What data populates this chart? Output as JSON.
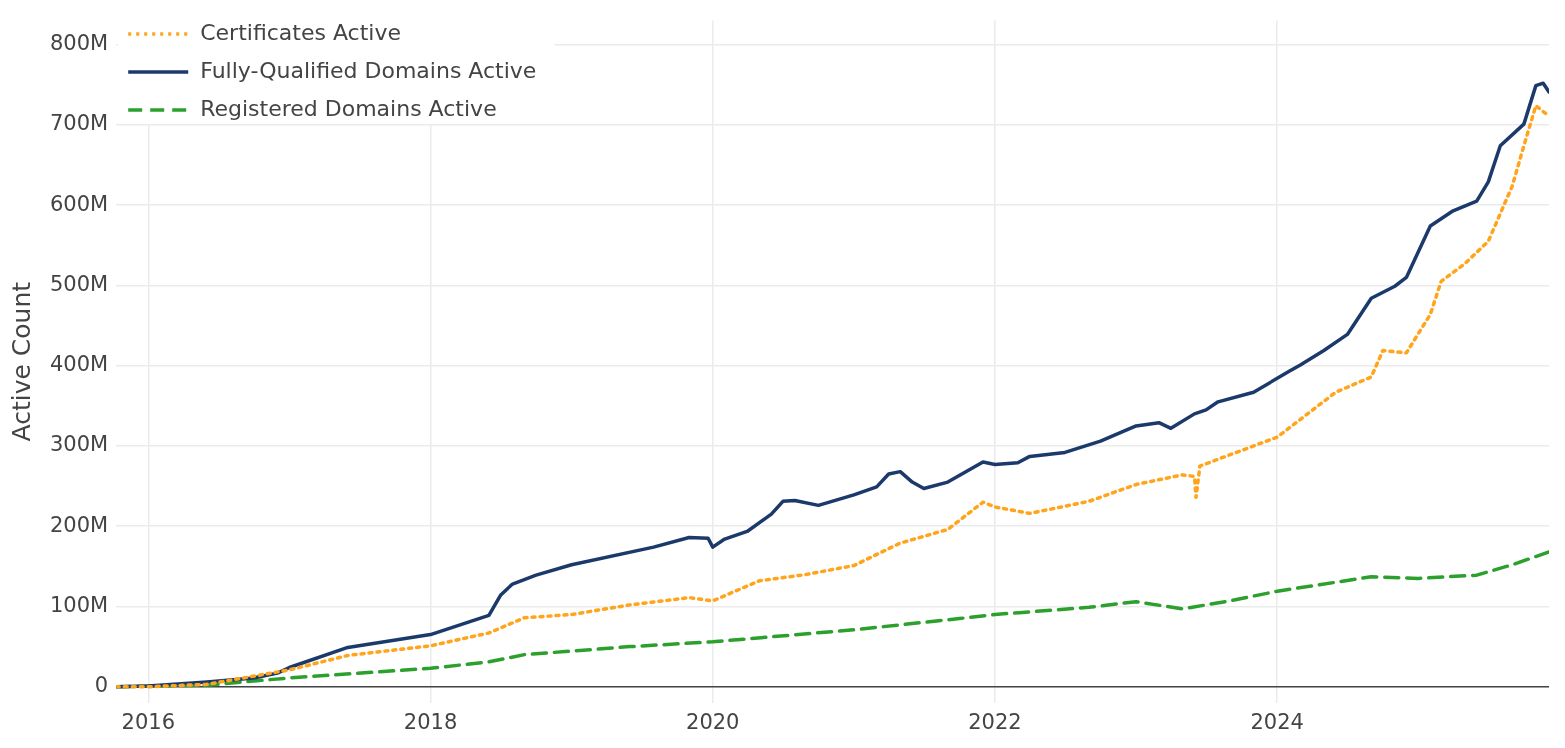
{
  "chart_data": {
    "type": "line",
    "ylabel": "Active Count",
    "xlim": [
      "2015-10-10",
      "2025-12-05"
    ],
    "ylim": [
      -20,
      830
    ],
    "xticks": [
      "2016",
      "2018",
      "2020",
      "2022",
      "2024"
    ],
    "yticks": [
      {
        "value": 0,
        "label": "0"
      },
      {
        "value": 100,
        "label": "100M"
      },
      {
        "value": 200,
        "label": "200M"
      },
      {
        "value": 300,
        "label": "300M"
      },
      {
        "value": 400,
        "label": "400M"
      },
      {
        "value": 500,
        "label": "500M"
      },
      {
        "value": 600,
        "label": "600M"
      },
      {
        "value": 700,
        "label": "700M"
      },
      {
        "value": 800,
        "label": "800M"
      }
    ],
    "grid": true,
    "legend": "top left",
    "marker": "none",
    "series": [
      {
        "name": "Certificates Active",
        "color": "#ffa41b",
        "line_style": "dotted",
        "x": [
          "2015-10-10",
          "2016-01",
          "2016-06",
          "2017-01",
          "2017-06",
          "2018-01",
          "2018-06",
          "2018-09",
          "2019-01",
          "2019-06",
          "2019-11",
          "2020-01",
          "2020-05",
          "2020-09",
          "2021-01",
          "2021-05",
          "2021-09",
          "2021-12",
          "2022-01",
          "2022-04",
          "2022-09",
          "2023-01",
          "2023-05",
          "2023-06-01",
          "2023-06-05",
          "2023-06-15",
          "2024-01",
          "2024-06",
          "2024-09",
          "2024-10",
          "2024-12",
          "2025-02",
          "2025-03",
          "2025-05",
          "2025-07",
          "2025-09",
          "2025-10",
          "2025-11",
          "2025-12-05"
        ],
        "values": [
          0,
          0,
          3,
          21,
          39,
          51,
          67,
          86,
          90,
          102,
          111,
          107,
          132,
          140,
          151,
          179,
          196,
          230,
          224,
          216,
          231,
          252,
          264,
          262,
          236,
          275,
          311,
          367,
          386,
          419,
          416,
          464,
          505,
          527,
          555,
          624,
          674,
          724,
          711
        ]
      },
      {
        "name": "Fully-Qualified Domains Active",
        "color": "#1b3a6b",
        "line_style": "solid",
        "x": [
          "2015-10-10",
          "2016-01",
          "2016-06",
          "2016-10",
          "2016-12",
          "2017-01",
          "2017-06",
          "2018-01",
          "2018-06",
          "2018-07",
          "2018-08",
          "2018-10",
          "2019-01",
          "2019-08",
          "2019-11",
          "2019-12-20",
          "2020-01",
          "2020-02",
          "2020-04",
          "2020-06",
          "2020-07",
          "2020-08",
          "2020-10",
          "2021-01",
          "2021-03",
          "2021-04",
          "2021-05",
          "2021-06",
          "2021-07",
          "2021-09",
          "2021-12",
          "2022-01",
          "2022-03",
          "2022-04",
          "2022-07",
          "2022-10",
          "2023-01",
          "2023-03",
          "2023-04",
          "2023-06",
          "2023-07",
          "2023-08",
          "2023-11",
          "2024-02",
          "2024-03",
          "2024-05",
          "2024-07",
          "2024-09",
          "2024-11",
          "2024-12",
          "2025-02",
          "2025-04",
          "2025-06",
          "2025-07",
          "2025-08",
          "2025-10",
          "2025-11",
          "2025-11-20",
          "2025-12-05"
        ],
        "values": [
          0,
          1,
          6,
          11,
          17,
          24,
          49,
          65,
          89,
          114,
          128,
          139,
          152,
          174,
          186,
          185,
          174,
          184,
          194,
          215,
          231,
          232,
          226,
          239,
          249,
          265,
          268,
          255,
          247,
          255,
          280,
          277,
          279,
          287,
          292,
          306,
          325,
          329,
          322,
          340,
          345,
          355,
          367,
          393,
          401,
          419,
          439,
          484,
          499,
          510,
          574,
          593,
          605,
          629,
          674,
          701,
          749,
          752,
          741
        ]
      },
      {
        "name": "Registered Domains Active",
        "color": "#2ca02c",
        "line_style": "dashed",
        "x": [
          "2015-10-10",
          "2016-06",
          "2017-01",
          "2018-01",
          "2018-06",
          "2018-09",
          "2019-06",
          "2020-01",
          "2021-01",
          "2021-10",
          "2022-01",
          "2022-09",
          "2023-01",
          "2023-05",
          "2023-09",
          "2024-01",
          "2024-09",
          "2025-01",
          "2025-06",
          "2025-09",
          "2025-12-05"
        ],
        "values": [
          0,
          2,
          11,
          23,
          31,
          40,
          50,
          56,
          71,
          85,
          90,
          99,
          106,
          97,
          107,
          119,
          137,
          135,
          139,
          152,
          168
        ]
      }
    ]
  }
}
